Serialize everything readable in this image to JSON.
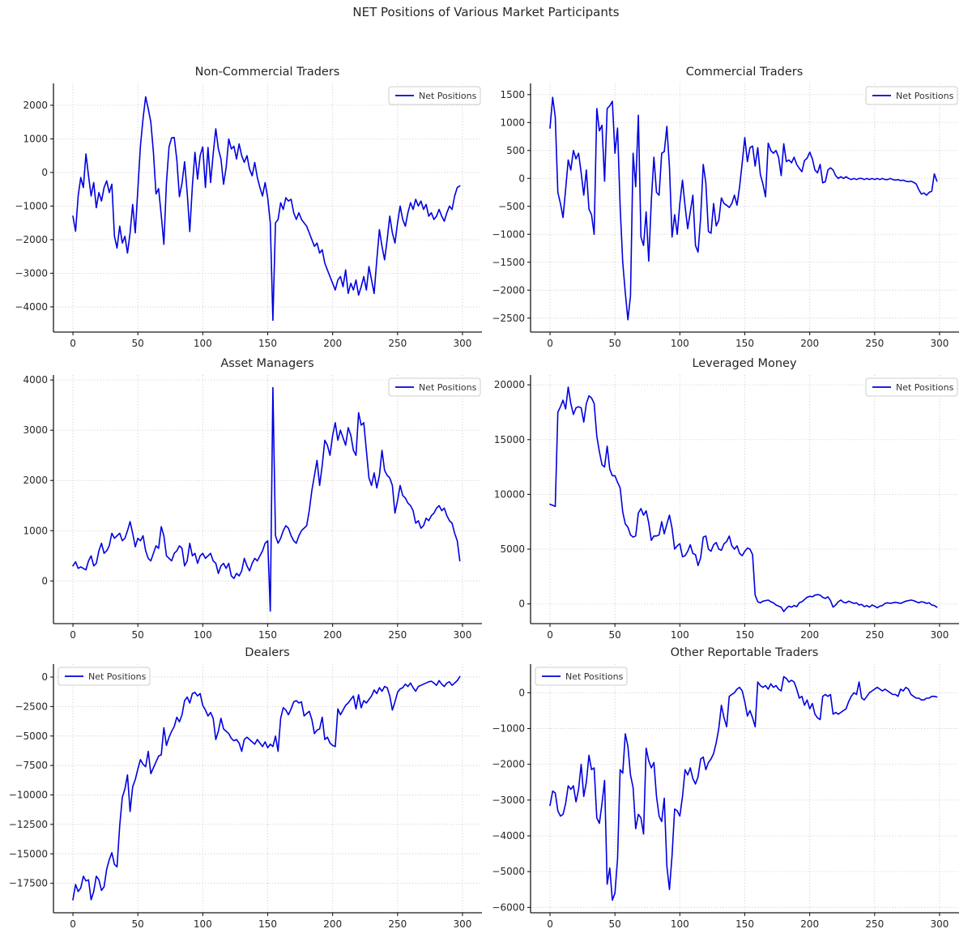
{
  "suptitle": "NET Positions of Various Market Participants",
  "line_color": "#0000e0",
  "chart_data": [
    {
      "type": "line",
      "title": "Non-Commercial Traders",
      "legend_label": "Net Positions",
      "legend_position": "upper right",
      "color": "#0000e0",
      "x_start": 0,
      "x_step": 2,
      "xlim": [
        -15,
        315
      ],
      "ylim": [
        -4750,
        2650
      ],
      "xticks": [
        0,
        50,
        100,
        150,
        200,
        250,
        300
      ],
      "yticks": [
        2000,
        1000,
        0,
        -1000,
        -2000,
        -3000,
        -4000
      ],
      "values": [
        -1300,
        -1750,
        -700,
        -150,
        -450,
        550,
        -100,
        -700,
        -300,
        -1050,
        -600,
        -850,
        -450,
        -250,
        -600,
        -350,
        -1900,
        -2250,
        -1600,
        -2100,
        -1900,
        -2400,
        -1800,
        -950,
        -1800,
        -500,
        800,
        1600,
        2250,
        1900,
        1500,
        600,
        -640,
        -480,
        -1280,
        -2140,
        -300,
        760,
        1030,
        1040,
        380,
        -720,
        -320,
        320,
        -600,
        -1760,
        -400,
        600,
        -200,
        500,
        760,
        -450,
        740,
        -300,
        550,
        1300,
        700,
        400,
        -350,
        150,
        1000,
        700,
        780,
        400,
        850,
        500,
        300,
        500,
        100,
        -100,
        300,
        -150,
        -450,
        -700,
        -300,
        -750,
        -1500,
        -4400,
        -1500,
        -1400,
        -900,
        -1100,
        -750,
        -850,
        -800,
        -1200,
        -1400,
        -1200,
        -1400,
        -1500,
        -1600,
        -1800,
        -2000,
        -2200,
        -2100,
        -2400,
        -2300,
        -2700,
        -2900,
        -3100,
        -3300,
        -3500,
        -3200,
        -3100,
        -3400,
        -2900,
        -3600,
        -3300,
        -3500,
        -3200,
        -3650,
        -3400,
        -3100,
        -3500,
        -2800,
        -3200,
        -3600,
        -2600,
        -1700,
        -2200,
        -2600,
        -2000,
        -1300,
        -1800,
        -2100,
        -1500,
        -1000,
        -1400,
        -1600,
        -1200,
        -900,
        -1100,
        -800,
        -1000,
        -850,
        -1100,
        -950,
        -1300,
        -1200,
        -1400,
        -1300,
        -1100,
        -1300,
        -1450,
        -1200,
        -1000,
        -1100,
        -700,
        -450,
        -400
      ]
    },
    {
      "type": "line",
      "title": "Commercial Traders",
      "legend_label": "Net Positions",
      "legend_position": "upper right",
      "color": "#0000e0",
      "x_start": 0,
      "x_step": 2,
      "xlim": [
        -15,
        315
      ],
      "ylim": [
        -2750,
        1700
      ],
      "xticks": [
        0,
        50,
        100,
        150,
        200,
        250,
        300
      ],
      "yticks": [
        1500,
        1000,
        500,
        0,
        -500,
        -1000,
        -1500,
        -2000,
        -2500
      ],
      "values": [
        900,
        1450,
        1100,
        -250,
        -450,
        -700,
        -200,
        330,
        150,
        500,
        350,
        450,
        100,
        -300,
        150,
        -550,
        -650,
        -1000,
        1250,
        850,
        950,
        -50,
        1250,
        1300,
        1380,
        450,
        900,
        -500,
        -1500,
        -2050,
        -2530,
        -2100,
        450,
        -150,
        1130,
        -1050,
        -1200,
        -600,
        -1480,
        -400,
        380,
        -250,
        -300,
        450,
        480,
        930,
        200,
        -1050,
        -650,
        -1000,
        -450,
        -30,
        -500,
        -900,
        -600,
        -300,
        -1200,
        -1320,
        -700,
        250,
        -80,
        -950,
        -980,
        -450,
        -850,
        -750,
        -350,
        -450,
        -480,
        -520,
        -450,
        -300,
        -480,
        -150,
        280,
        730,
        300,
        550,
        580,
        220,
        550,
        70,
        -100,
        -330,
        630,
        500,
        450,
        500,
        380,
        50,
        620,
        300,
        330,
        280,
        380,
        250,
        180,
        120,
        320,
        360,
        470,
        350,
        150,
        100,
        250,
        -80,
        -60,
        150,
        190,
        150,
        50,
        0,
        30,
        0,
        30,
        0,
        -20,
        0,
        -20,
        0,
        0,
        -20,
        0,
        -20,
        0,
        -20,
        0,
        -20,
        0,
        -20,
        -20,
        0,
        -20,
        -30,
        -20,
        -40,
        -30,
        -50,
        -60,
        -50,
        -70,
        -100,
        -200,
        -280,
        -260,
        -300,
        -250,
        -230,
        80,
        -50
      ]
    },
    {
      "type": "line",
      "title": "Asset Managers",
      "legend_label": "Net Positions",
      "legend_position": "upper right",
      "color": "#0000e0",
      "x_start": 0,
      "x_step": 2,
      "xlim": [
        -15,
        315
      ],
      "ylim": [
        -850,
        4100
      ],
      "xticks": [
        0,
        50,
        100,
        150,
        200,
        250,
        300
      ],
      "yticks": [
        4000,
        3000,
        2000,
        1000,
        0
      ],
      "values": [
        300,
        380,
        250,
        280,
        250,
        220,
        400,
        500,
        300,
        350,
        600,
        750,
        550,
        600,
        700,
        950,
        850,
        900,
        950,
        800,
        850,
        1000,
        1180,
        950,
        680,
        850,
        800,
        900,
        600,
        450,
        400,
        550,
        700,
        650,
        1080,
        900,
        500,
        450,
        400,
        550,
        600,
        700,
        650,
        300,
        400,
        750,
        500,
        550,
        350,
        500,
        550,
        450,
        500,
        550,
        400,
        350,
        150,
        300,
        350,
        250,
        350,
        100,
        50,
        150,
        100,
        200,
        450,
        300,
        200,
        350,
        450,
        400,
        500,
        600,
        750,
        800,
        -600,
        3850,
        900,
        750,
        850,
        1000,
        1100,
        1050,
        900,
        800,
        750,
        900,
        1000,
        1050,
        1100,
        1400,
        1800,
        2100,
        2400,
        1900,
        2300,
        2800,
        2700,
        2500,
        2900,
        3150,
        2800,
        3000,
        2850,
        2700,
        3050,
        2900,
        2600,
        2500,
        3350,
        3100,
        3150,
        2600,
        2050,
        1900,
        2150,
        1850,
        2100,
        2600,
        2200,
        2100,
        2050,
        1900,
        1350,
        1600,
        1900,
        1700,
        1650,
        1550,
        1500,
        1400,
        1150,
        1200,
        1050,
        1100,
        1250,
        1200,
        1300,
        1350,
        1450,
        1500,
        1400,
        1450,
        1300,
        1200,
        1150,
        950,
        800,
        400
      ]
    },
    {
      "type": "line",
      "title": "Leveraged Money",
      "legend_label": "Net Positions",
      "legend_position": "upper right",
      "color": "#0000e0",
      "x_start": 0,
      "x_step": 2,
      "xlim": [
        -15,
        315
      ],
      "ylim": [
        -1800,
        20900
      ],
      "xticks": [
        0,
        50,
        100,
        150,
        200,
        250,
        300
      ],
      "yticks": [
        20000,
        15000,
        10000,
        5000,
        0
      ],
      "values": [
        9100,
        9000,
        8900,
        17500,
        18000,
        18600,
        17800,
        19800,
        18300,
        17300,
        17900,
        18000,
        17900,
        16600,
        18300,
        19000,
        18800,
        18300,
        15300,
        13900,
        12700,
        12500,
        14400,
        12300,
        11700,
        11700,
        11100,
        10600,
        8400,
        7300,
        7000,
        6300,
        6100,
        6200,
        8300,
        8700,
        8100,
        8500,
        7400,
        5800,
        6200,
        6200,
        6300,
        7500,
        6400,
        7300,
        8100,
        6900,
        5000,
        5300,
        5500,
        4300,
        4400,
        4800,
        5400,
        4600,
        4500,
        3500,
        4200,
        6100,
        6200,
        5000,
        4800,
        5400,
        5600,
        5000,
        4900,
        5500,
        5700,
        6200,
        5300,
        5000,
        5300,
        4600,
        4400,
        4800,
        5100,
        5000,
        4500,
        800,
        200,
        100,
        250,
        300,
        350,
        200,
        100,
        -100,
        -200,
        -300,
        -700,
        -400,
        -200,
        -300,
        -150,
        -250,
        100,
        200,
        400,
        600,
        700,
        650,
        800,
        850,
        800,
        600,
        500,
        650,
        300,
        -300,
        -100,
        200,
        350,
        150,
        100,
        250,
        150,
        50,
        100,
        -100,
        -50,
        -250,
        -150,
        -300,
        -100,
        -200,
        -350,
        -200,
        -150,
        50,
        100,
        50,
        100,
        150,
        100,
        50,
        150,
        250,
        300,
        350,
        300,
        200,
        100,
        200,
        150,
        50,
        100,
        -100,
        -150,
        -300
      ]
    },
    {
      "type": "line",
      "title": "Dealers",
      "legend_label": "Net Positions",
      "legend_position": "upper left",
      "color": "#0000e0",
      "x_start": 0,
      "x_step": 2,
      "xlim": [
        -15,
        315
      ],
      "ylim": [
        -20000,
        1100
      ],
      "xticks": [
        0,
        50,
        100,
        150,
        200,
        250,
        300
      ],
      "yticks": [
        0,
        -2500,
        -5000,
        -7500,
        -10000,
        -12500,
        -15000,
        -17500
      ],
      "values": [
        -18900,
        -17600,
        -18200,
        -17900,
        -16900,
        -17300,
        -17200,
        -18900,
        -18200,
        -16900,
        -17200,
        -18100,
        -17800,
        -16300,
        -15500,
        -14900,
        -15900,
        -16100,
        -12600,
        -10200,
        -9500,
        -8300,
        -11400,
        -9300,
        -8700,
        -7800,
        -7000,
        -7400,
        -7600,
        -6300,
        -8200,
        -7700,
        -7200,
        -6700,
        -6600,
        -4300,
        -5800,
        -5100,
        -4600,
        -4200,
        -3400,
        -3800,
        -3200,
        -2000,
        -1700,
        -2200,
        -1400,
        -1300,
        -1600,
        -1400,
        -2400,
        -2800,
        -3300,
        -3000,
        -3500,
        -5300,
        -4600,
        -3500,
        -4400,
        -4600,
        -4800,
        -5200,
        -5400,
        -5300,
        -5600,
        -6300,
        -5300,
        -5100,
        -5300,
        -5500,
        -5700,
        -5300,
        -5600,
        -5900,
        -5500,
        -6000,
        -5700,
        -5900,
        -5000,
        -6300,
        -3500,
        -2600,
        -2800,
        -3200,
        -2700,
        -2100,
        -2000,
        -2200,
        -2100,
        -3300,
        -3100,
        -2900,
        -3600,
        -4800,
        -4500,
        -4400,
        -3400,
        -5300,
        -5100,
        -5600,
        -5800,
        -5900,
        -2700,
        -3200,
        -2800,
        -2400,
        -2200,
        -1900,
        -1600,
        -2700,
        -1500,
        -2600,
        -2000,
        -2200,
        -1900,
        -1600,
        -1100,
        -1400,
        -900,
        -1200,
        -800,
        -900,
        -1600,
        -2800,
        -2100,
        -1300,
        -1000,
        -900,
        -600,
        -800,
        -500,
        -900,
        -1200,
        -800,
        -700,
        -600,
        -500,
        -400,
        -350,
        -500,
        -700,
        -300,
        -600,
        -800,
        -500,
        -400,
        -700,
        -500,
        -300,
        50
      ]
    },
    {
      "type": "line",
      "title": "Other Reportable Traders",
      "legend_label": "Net Positions",
      "legend_position": "upper left",
      "color": "#0000e0",
      "x_start": 0,
      "x_step": 2,
      "xlim": [
        -15,
        315
      ],
      "ylim": [
        -6150,
        800
      ],
      "xticks": [
        0,
        50,
        100,
        150,
        200,
        250,
        300
      ],
      "yticks": [
        0,
        -1000,
        -2000,
        -3000,
        -4000,
        -5000,
        -6000
      ],
      "values": [
        -3150,
        -2750,
        -2800,
        -3300,
        -3450,
        -3400,
        -3100,
        -2600,
        -2700,
        -2600,
        -3050,
        -2700,
        -2000,
        -2900,
        -2500,
        -1750,
        -2150,
        -2100,
        -3500,
        -3650,
        -3100,
        -2450,
        -5350,
        -4900,
        -5800,
        -5600,
        -4650,
        -2150,
        -2250,
        -1150,
        -1500,
        -2300,
        -2650,
        -3800,
        -3400,
        -3500,
        -3950,
        -1550,
        -1900,
        -2100,
        -1950,
        -2900,
        -3450,
        -3600,
        -2950,
        -4850,
        -5500,
        -4550,
        -3250,
        -3300,
        -3450,
        -2900,
        -2150,
        -2300,
        -2100,
        -2400,
        -2550,
        -2350,
        -1850,
        -1800,
        -2150,
        -1950,
        -1850,
        -1700,
        -1400,
        -1000,
        -350,
        -700,
        -950,
        -100,
        -50,
        0,
        100,
        150,
        50,
        -250,
        -650,
        -500,
        -700,
        -950,
        300,
        200,
        150,
        200,
        100,
        250,
        150,
        200,
        100,
        50,
        450,
        400,
        300,
        350,
        300,
        100,
        -150,
        -100,
        -350,
        -200,
        -450,
        -300,
        -600,
        -700,
        -750,
        -100,
        -50,
        -100,
        -50,
        -600,
        -550,
        -600,
        -550,
        -500,
        -450,
        -250,
        -100,
        0,
        -50,
        300,
        -150,
        -200,
        -100,
        0,
        50,
        100,
        150,
        100,
        50,
        100,
        50,
        0,
        -50,
        -50,
        -100,
        100,
        50,
        150,
        100,
        -50,
        -100,
        -150,
        -150,
        -200,
        -200,
        -150,
        -150,
        -100,
        -100,
        -120
      ]
    }
  ]
}
